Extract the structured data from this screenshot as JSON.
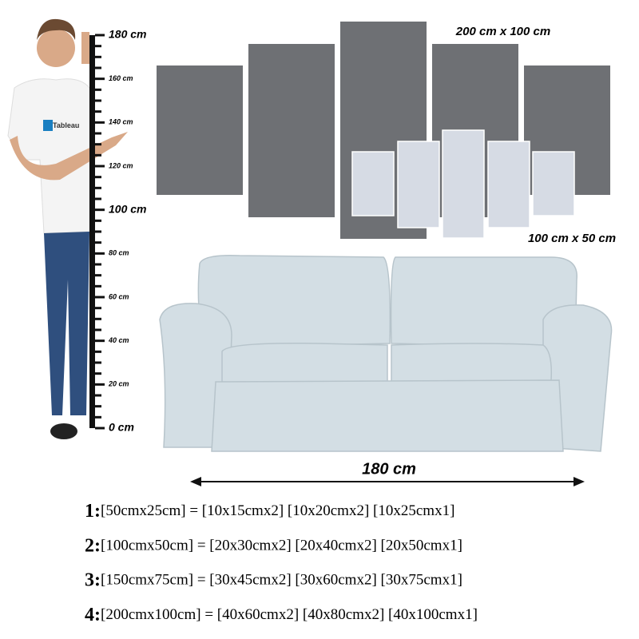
{
  "ruler": {
    "labels": [
      "180 cm",
      "160 cm",
      "140 cm",
      "120 cm",
      "100 cm",
      "80 cm",
      "60 cm",
      "40 cm",
      "20 cm",
      "0 cm"
    ]
  },
  "logo": "Tableau",
  "panels": {
    "large_size": "200 cm x 100 cm",
    "small_size": "100 cm x 50 cm"
  },
  "sofa": {
    "width": "180 cm"
  },
  "sizes": [
    {
      "index": "1:",
      "text": "[50cmx25cm] = [10x15cmx2] [10x20cmx2] [10x25cmx1]"
    },
    {
      "index": "2:",
      "text": "[100cmx50cm] = [20x30cmx2] [20x40cmx2] [20x50cmx1]"
    },
    {
      "index": "3:",
      "text": "[150cmx75cm] = [30x45cmx2] [30x60cmx2] [30x75cmx1]"
    },
    {
      "index": "4:",
      "text": "[200cmx100cm] = [40x60cmx2] [40x80cmx2] [40x100cmx1]"
    }
  ]
}
